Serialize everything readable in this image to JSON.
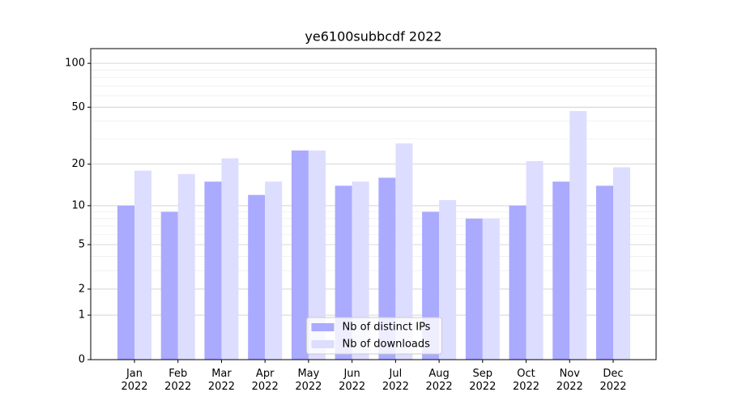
{
  "chart_data": {
    "type": "bar",
    "title": "ye6100subbcdf 2022",
    "categories": [
      "Jan 2022",
      "Feb 2022",
      "Mar 2022",
      "Apr 2022",
      "May 2022",
      "Jun 2022",
      "Jul 2022",
      "Aug 2022",
      "Sep 2022",
      "Oct 2022",
      "Nov 2022",
      "Dec 2022"
    ],
    "series": [
      {
        "name": "Nb of distinct IPs",
        "color": "#aaaaff",
        "values": [
          10,
          9,
          15,
          12,
          25,
          14,
          16,
          9,
          8,
          10,
          15,
          14
        ]
      },
      {
        "name": "Nb of downloads",
        "color": "#ddddff",
        "values": [
          18,
          17,
          22,
          15,
          25,
          15,
          28,
          11,
          8,
          21,
          47,
          19
        ]
      }
    ],
    "yscale": "log1p",
    "ylim": [
      0,
      126
    ],
    "yticks": [
      0,
      1,
      2,
      5,
      10,
      20,
      50,
      100
    ],
    "grid": true,
    "legend": "lower center"
  }
}
